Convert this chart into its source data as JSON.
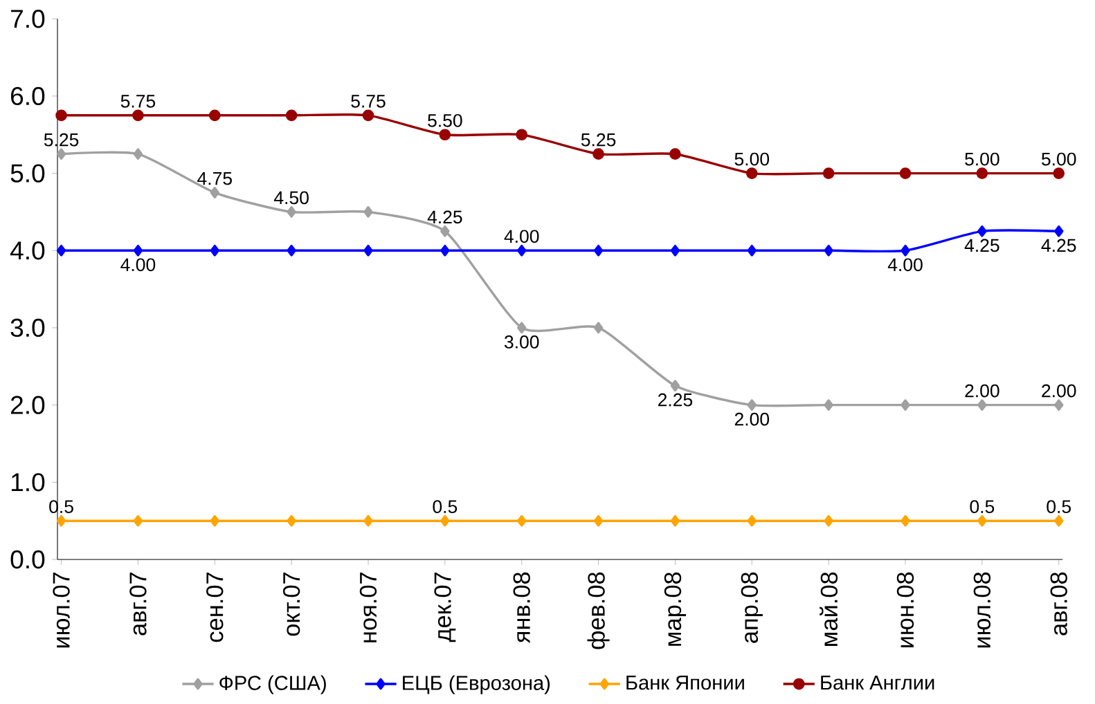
{
  "chart_data": {
    "type": "line",
    "categories": [
      "июл.07",
      "авг.07",
      "сен.07",
      "окт.07",
      "ноя.07",
      "дек.07",
      "янв.08",
      "фев.08",
      "мар.08",
      "апр.08",
      "май.08",
      "июн.08",
      "июл.08",
      "авг.08"
    ],
    "series": [
      {
        "name": "ФРС (США)",
        "color": "#a0a0a0",
        "marker": "diamond",
        "values": [
          5.25,
          5.25,
          4.75,
          4.5,
          4.5,
          4.25,
          3.0,
          3.0,
          2.25,
          2.0,
          2.0,
          2.0,
          2.0,
          2.0
        ],
        "value_labels": [
          "5.25",
          null,
          "4.75",
          "4.50",
          null,
          "4.25",
          "3.00",
          null,
          "2.25",
          "2.00",
          null,
          null,
          "2.00",
          "2.00"
        ]
      },
      {
        "name": "ЕЦБ (Еврозона)",
        "color": "#0000ff",
        "marker": "diamond",
        "values": [
          4.0,
          4.0,
          4.0,
          4.0,
          4.0,
          4.0,
          4.0,
          4.0,
          4.0,
          4.0,
          4.0,
          4.0,
          4.25,
          4.25
        ],
        "value_labels": [
          null,
          "4.00",
          null,
          null,
          null,
          null,
          "4.00",
          null,
          null,
          null,
          null,
          "4.00",
          "4.25",
          "4.25"
        ]
      },
      {
        "name": "Банк Японии",
        "color": "#ffa500",
        "marker": "diamond",
        "values": [
          0.5,
          0.5,
          0.5,
          0.5,
          0.5,
          0.5,
          0.5,
          0.5,
          0.5,
          0.5,
          0.5,
          0.5,
          0.5,
          0.5
        ],
        "value_labels": [
          "0.5",
          null,
          null,
          null,
          null,
          "0.5",
          null,
          null,
          null,
          null,
          null,
          null,
          "0.5",
          "0.5"
        ]
      },
      {
        "name": "Банк Англии",
        "color": "#990000",
        "marker": "circle",
        "values": [
          5.75,
          5.75,
          5.75,
          5.75,
          5.75,
          5.5,
          5.5,
          5.25,
          5.25,
          5.0,
          5.0,
          5.0,
          5.0,
          5.0
        ],
        "value_labels": [
          null,
          "5.75",
          null,
          null,
          "5.75",
          "5.50",
          null,
          "5.25",
          null,
          "5.00",
          null,
          null,
          "5.00",
          "5.00"
        ]
      }
    ],
    "ylim": [
      0,
      7
    ],
    "yticks": [
      {
        "value": 0,
        "label": "0.0"
      },
      {
        "value": 1,
        "label": "1.0"
      },
      {
        "value": 2,
        "label": "2.0"
      },
      {
        "value": 3,
        "label": "3.0"
      },
      {
        "value": 4,
        "label": "4.0"
      },
      {
        "value": 5,
        "label": "5.0"
      },
      {
        "value": 6,
        "label": "6.0"
      },
      {
        "value": 7,
        "label": "7.0"
      }
    ],
    "legend": "bottom",
    "line_style": "solid"
  }
}
